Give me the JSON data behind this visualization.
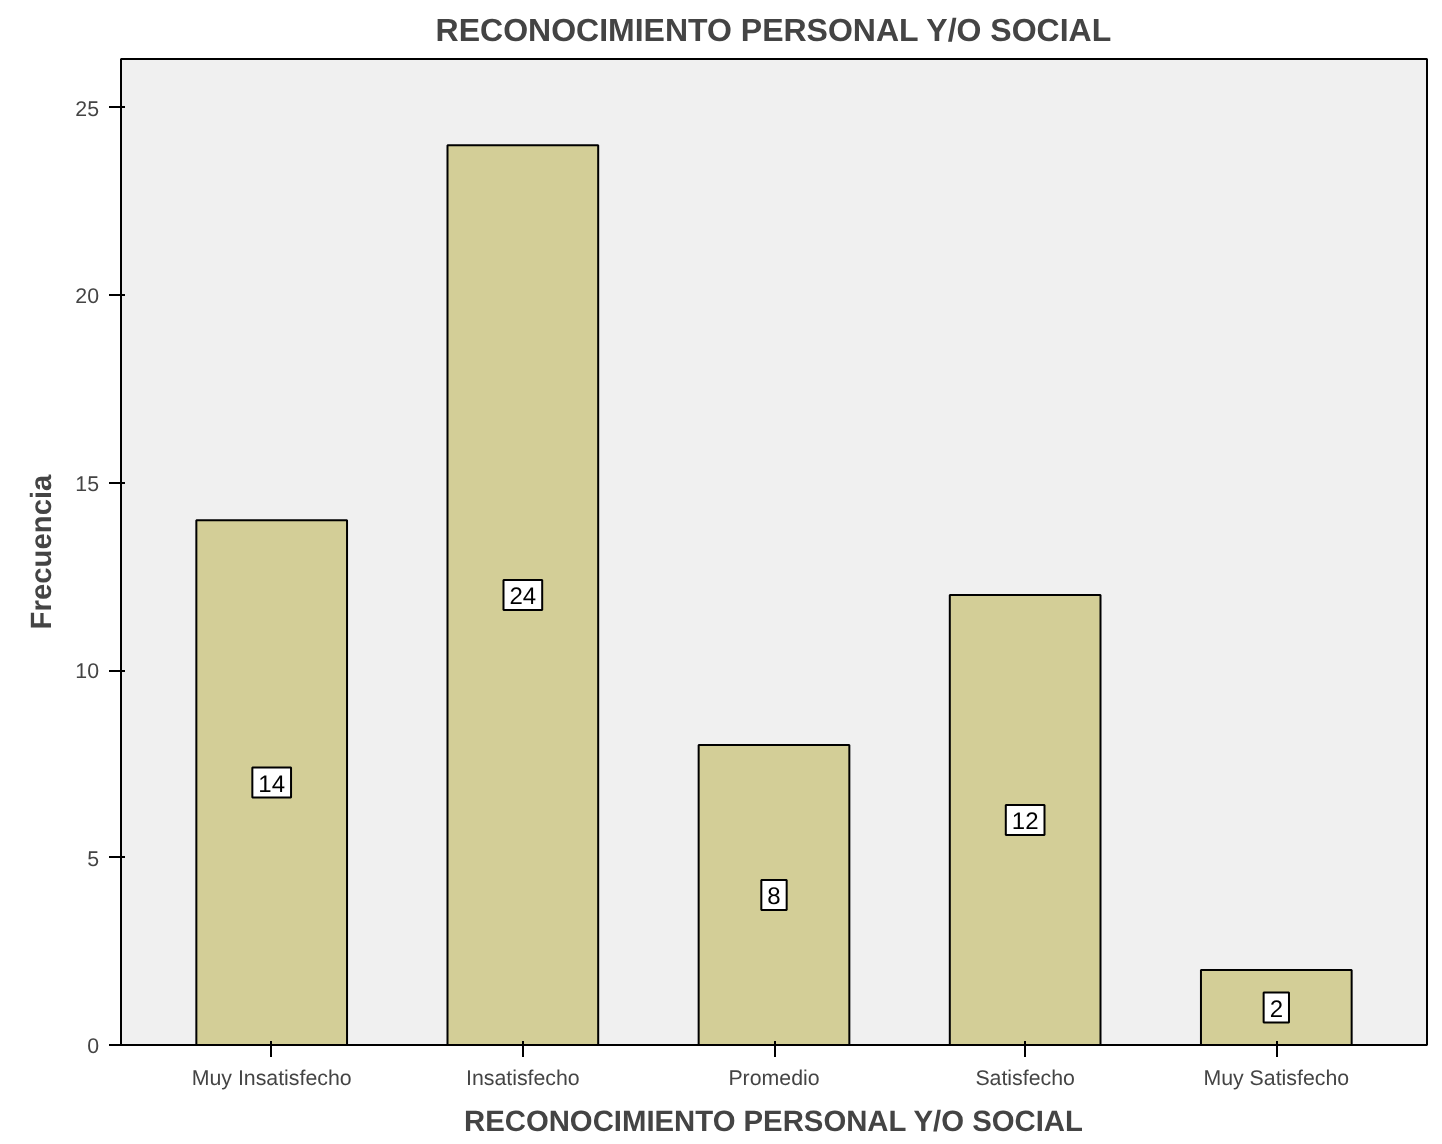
{
  "chart_data": {
    "type": "bar",
    "title": "RECONOCIMIENTO PERSONAL Y/O SOCIAL",
    "xlabel": "RECONOCIMIENTO PERSONAL Y/O SOCIAL",
    "ylabel": "Frecuencia",
    "categories": [
      "Muy Insatisfecho",
      "Insatisfecho",
      "Promedio",
      "Satisfecho",
      "Muy Satisfecho"
    ],
    "values": [
      14,
      24,
      8,
      12,
      2
    ],
    "color": "#d3ce97",
    "ylim": [
      0,
      26.3
    ],
    "yticks": [
      0,
      5,
      10,
      15,
      20,
      25
    ],
    "grid": false,
    "data_labels": true
  }
}
